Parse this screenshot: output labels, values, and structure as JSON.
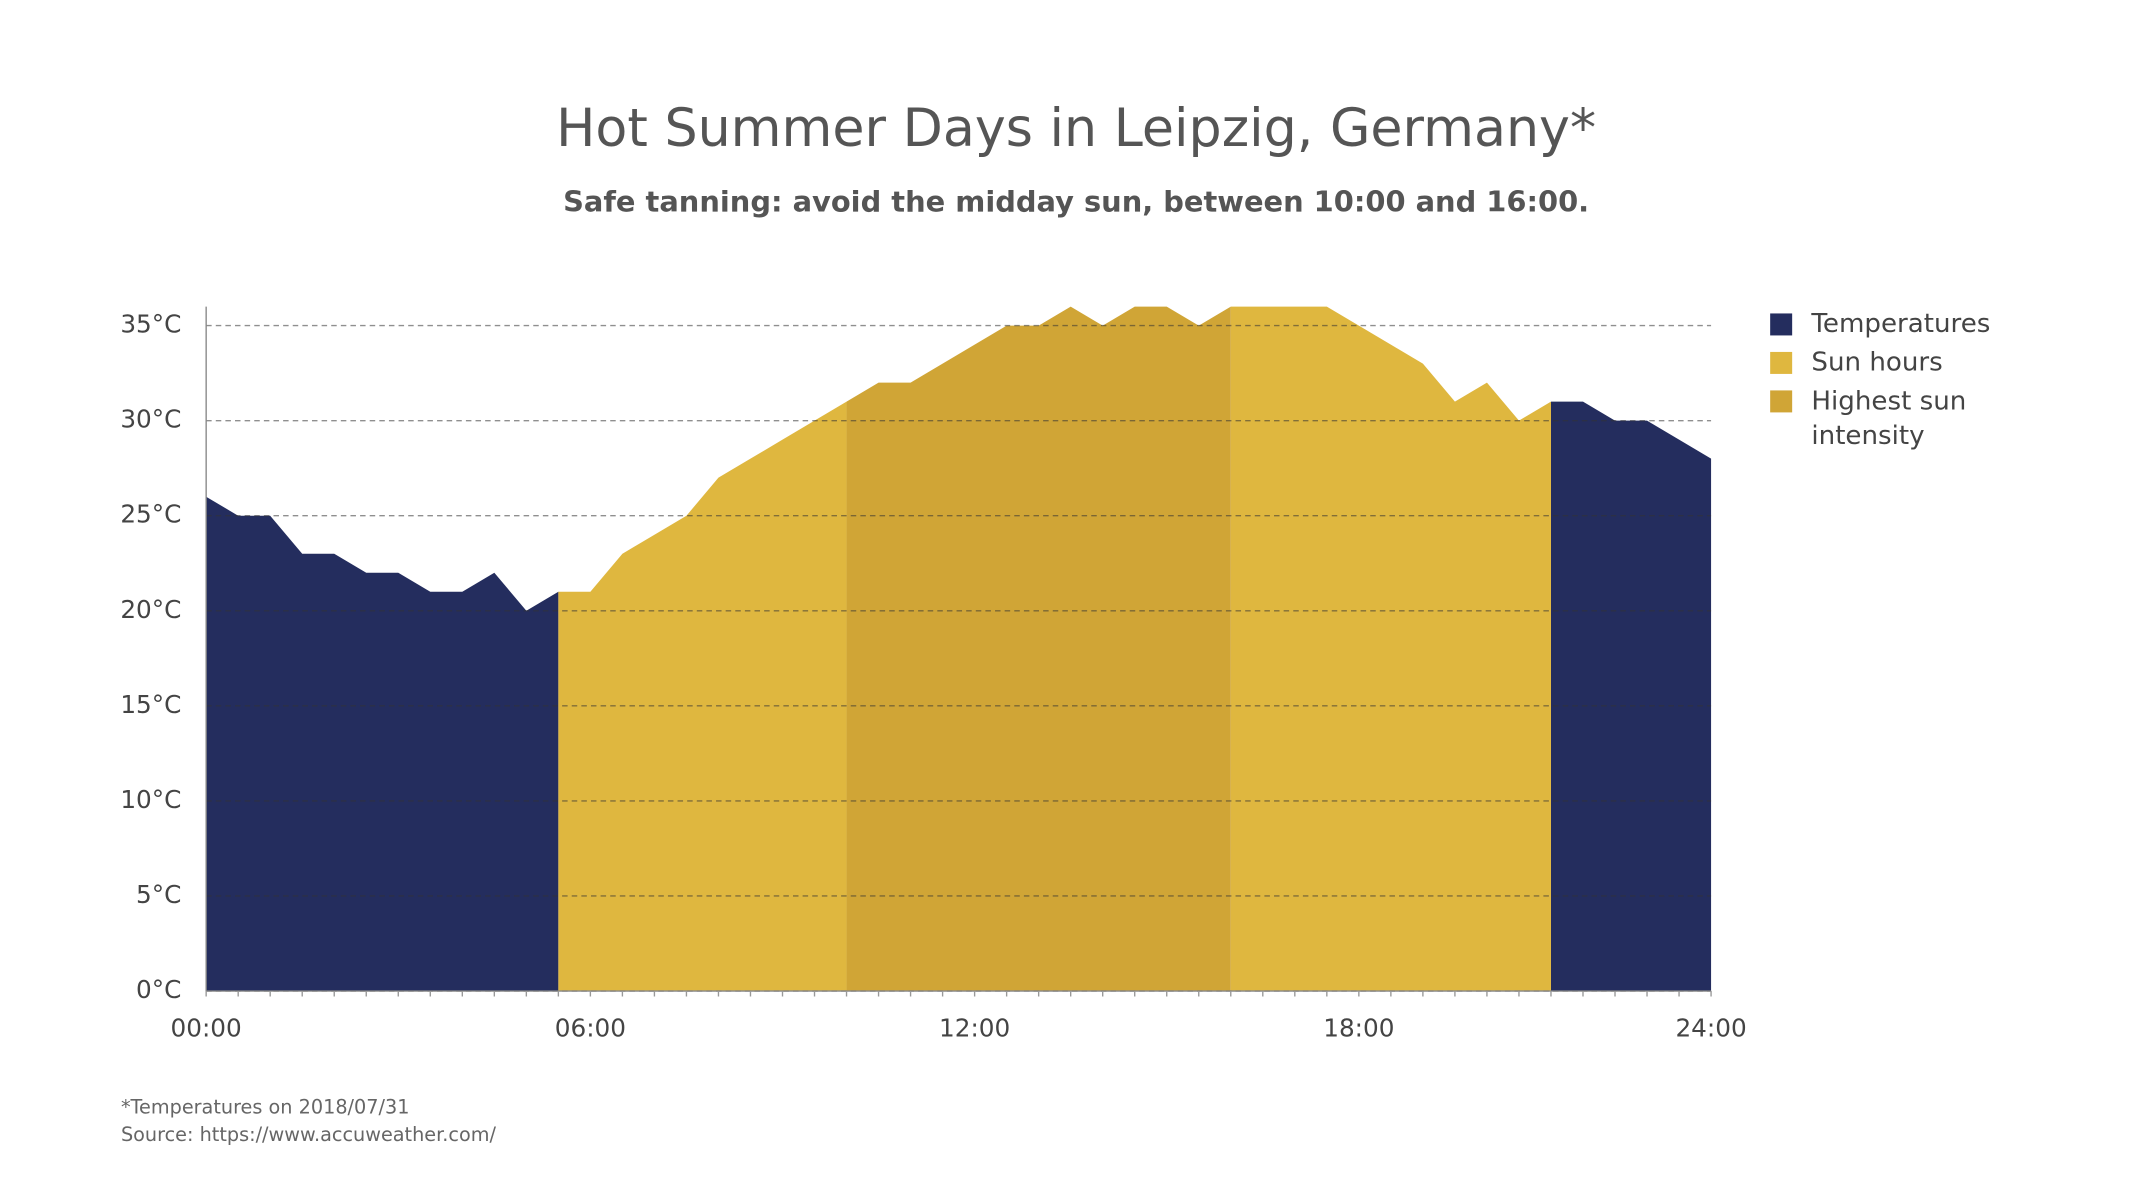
{
  "chart_data": {
    "type": "area",
    "title": "Hot Summer Days in Leipzig, Germany*",
    "subtitle": "Safe tanning: avoid the midday sun, between 10:00 and 16:00.",
    "footnotes": [
      "*Temperatures on 2018/07/31",
      "Source: https://www.accuweather.com/"
    ],
    "categories": [
      "00:00",
      null,
      null,
      null,
      null,
      null,
      null,
      null,
      null,
      null,
      null,
      null,
      "06:00",
      null,
      null,
      null,
      null,
      null,
      null,
      null,
      null,
      null,
      null,
      null,
      "12:00",
      null,
      null,
      null,
      null,
      null,
      null,
      null,
      null,
      null,
      null,
      null,
      "18:00",
      null,
      null,
      null,
      null,
      null,
      null,
      null,
      null,
      null,
      null,
      "24:00"
    ],
    "series": [
      {
        "name": "Temperatures",
        "color": "#242d5e",
        "values": [
          26,
          25,
          25,
          23,
          23,
          22,
          22,
          21,
          21,
          22,
          20,
          21,
          null,
          null,
          null,
          null,
          null,
          null,
          null,
          null,
          null,
          null,
          null,
          null,
          null,
          null,
          null,
          null,
          null,
          null,
          null,
          null,
          null,
          null,
          null,
          null,
          null,
          null,
          null,
          null,
          null,
          null,
          31,
          31,
          30,
          30,
          29,
          28
        ]
      },
      {
        "name": "Sun hours",
        "color": "#dfb73f",
        "values": [
          null,
          null,
          null,
          null,
          null,
          null,
          null,
          null,
          null,
          null,
          null,
          21,
          21,
          23,
          24,
          25,
          27,
          28,
          29,
          30,
          31,
          null,
          null,
          null,
          null,
          null,
          null,
          null,
          null,
          null,
          null,
          null,
          36,
          36,
          36,
          36,
          35,
          34,
          33,
          31,
          32,
          30,
          31,
          null,
          null,
          null,
          null,
          null
        ]
      },
      {
        "name": "Highest sun intensity",
        "color": "#d0a536",
        "values": [
          null,
          null,
          null,
          null,
          null,
          null,
          null,
          null,
          null,
          null,
          null,
          null,
          null,
          null,
          null,
          null,
          null,
          null,
          null,
          null,
          31,
          32,
          32,
          33,
          34,
          35,
          35,
          36,
          35,
          36,
          36,
          35,
          36,
          null,
          null,
          null,
          null,
          null,
          null,
          null,
          null,
          null,
          null,
          null,
          null,
          null,
          null,
          null
        ]
      }
    ],
    "ylim": [
      0,
      36
    ],
    "yticks": [
      {
        "value": 0,
        "label": "0°C"
      },
      {
        "value": 5,
        "label": "5°C"
      },
      {
        "value": 10,
        "label": "10°C"
      },
      {
        "value": 15,
        "label": "15°C"
      },
      {
        "value": 20,
        "label": "20°C"
      },
      {
        "value": 25,
        "label": "25°C"
      },
      {
        "value": 30,
        "label": "30°C"
      },
      {
        "value": 35,
        "label": "35°C"
      }
    ],
    "grid": true,
    "legend": "right"
  }
}
